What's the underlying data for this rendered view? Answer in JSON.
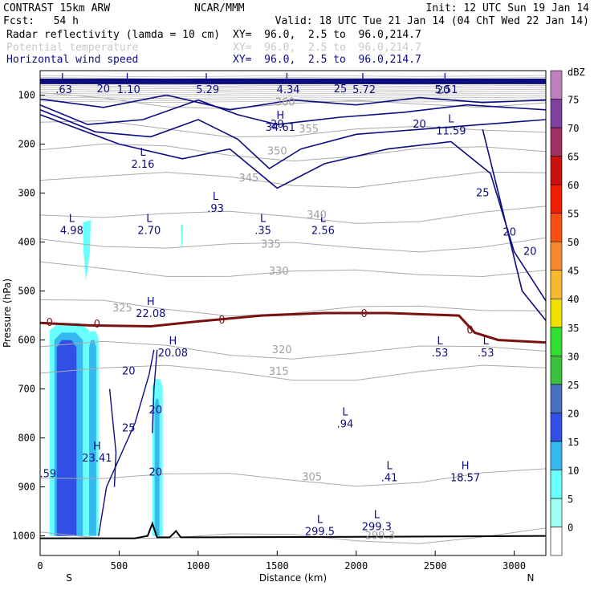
{
  "header": {
    "model": "CONTRAST 15km ARW",
    "org": "NCAR/MMM",
    "init": "Init: 12 UTC Sun 19 Jan 14",
    "fcst": "Fcst:   54 h",
    "valid": "Valid: 18 UTC Tue 21 Jan 14 (04 ChT Wed 22 Jan 14)",
    "fields": [
      {
        "name": "Radar reflectivity (lamda = 10 cm)",
        "xy": "XY=  96.0,  2.5 to  96.0,214.7",
        "color": "#000000"
      },
      {
        "name": "Potential temperature",
        "xy": "XY=  96.0,  2.5 to  96.0,214.7",
        "color": "#c8c8c8"
      },
      {
        "name": "Horizontal wind speed",
        "xy": "XY=  96.0,  2.5 to  96.0,214.7",
        "color": "#0d0d80"
      }
    ]
  },
  "chart_data": {
    "type": "heatmap",
    "xlabel": "Distance (km)",
    "ylabel": "Pressure (hPa)",
    "xlim": [
      0,
      3200
    ],
    "ylim": [
      1040,
      50
    ],
    "x_ticks": [
      0,
      500,
      1000,
      1500,
      2000,
      2500,
      3000
    ],
    "y_ticks": [
      100,
      200,
      300,
      400,
      500,
      600,
      700,
      800,
      900,
      1000
    ],
    "x_end_labels": {
      "left": "S",
      "right": "N"
    },
    "colorbar": {
      "title": "dBZ",
      "levels": [
        0,
        5,
        10,
        15,
        20,
        25,
        30,
        35,
        40,
        45,
        50,
        55,
        60,
        65,
        70,
        75
      ],
      "colors": [
        "#ffffff",
        "#9ffff0",
        "#69ffff",
        "#36b8f0",
        "#3050e8",
        "#4a70c0",
        "#3ac03a",
        "#30e030",
        "#f0e000",
        "#f8b830",
        "#f88830",
        "#f85010",
        "#f02000",
        "#cc1010",
        "#a03060",
        "#8040a0",
        "#c080c0"
      ]
    },
    "theta_contours": [
      {
        "value": 299.3,
        "p_at": 1000
      },
      {
        "value": 305,
        "p_at": 880
      },
      {
        "value": 315,
        "p_at": 665
      },
      {
        "value": 320,
        "p_at": 620
      },
      {
        "value": 325,
        "p_at": 535
      },
      {
        "value": 330,
        "p_at": 460
      },
      {
        "value": 335,
        "p_at": 405
      },
      {
        "value": 340,
        "p_at": 345
      },
      {
        "value": 345,
        "p_at": 270
      },
      {
        "value": 350,
        "p_at": 215
      },
      {
        "value": 355,
        "p_at": 170
      },
      {
        "value": 360,
        "p_at": 115
      }
    ],
    "zero_dbz_line": {
      "value": 0,
      "color": "#7a1010"
    },
    "wind_contour_labels": [
      "20",
      "25",
      "20",
      "20",
      "25",
      "20",
      "20",
      "25",
      "20",
      "20"
    ],
    "low_high_labels": [
      {
        "type": "L",
        "value": ".63"
      },
      {
        "type": "L",
        "value": "1.10"
      },
      {
        "type": "L",
        "value": "5.29"
      },
      {
        "type": "L",
        "value": "4.34"
      },
      {
        "type": "L",
        "value": "5.72"
      },
      {
        "type": "L",
        "value": "5.51"
      },
      {
        "type": "H",
        "value": "34.61"
      },
      {
        "type": "L",
        "value": "11.59"
      },
      {
        "type": "L",
        "value": "2.16"
      },
      {
        "type": "L",
        "value": "4.98"
      },
      {
        "type": "L",
        "value": "2.70"
      },
      {
        "type": "L",
        "value": ".93"
      },
      {
        "type": "L",
        "value": ".35"
      },
      {
        "type": "L",
        "value": "2.56"
      },
      {
        "type": "H",
        "value": "22.08"
      },
      {
        "type": "H",
        "value": "20.08"
      },
      {
        "type": "L",
        "value": ".53"
      },
      {
        "type": "L",
        "value": ".53"
      },
      {
        "type": "L",
        "value": ".94"
      },
      {
        "type": "H",
        "value": "23.41"
      },
      {
        "type": "L",
        "value": ".41"
      },
      {
        "type": "H",
        "value": "18.57"
      },
      {
        "type": "L",
        "value": "299.5"
      },
      {
        "type": "L",
        "value": "299.3"
      }
    ],
    "edge_labels": [
      ".59",
      "20",
      "20"
    ]
  }
}
